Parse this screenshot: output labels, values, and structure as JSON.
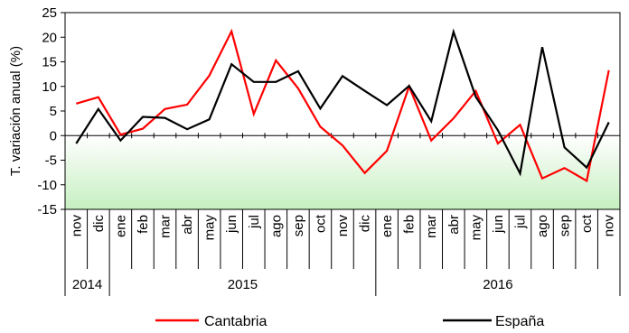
{
  "chart_data": {
    "type": "line",
    "title": "",
    "xlabel": "",
    "ylabel": "T. variación anual (%)",
    "ylim": [
      -15,
      25
    ],
    "yticks": [
      -15,
      -10,
      -5,
      0,
      5,
      10,
      15,
      20,
      25
    ],
    "grid": false,
    "legend_position": "bottom",
    "categories": [
      "nov",
      "dic",
      "ene",
      "feb",
      "mar",
      "abr",
      "may",
      "jun",
      "jul",
      "ago",
      "sep",
      "oct",
      "nov",
      "dic",
      "ene",
      "feb",
      "mar",
      "abr",
      "may",
      "jun",
      "jul",
      "ago",
      "sep",
      "oct",
      "nov"
    ],
    "year_groups": [
      {
        "label": "2014",
        "start": 0,
        "end": 1
      },
      {
        "label": "2015",
        "start": 2,
        "end": 13
      },
      {
        "label": "2016",
        "start": 14,
        "end": 24
      }
    ],
    "series": [
      {
        "name": "Cantabria",
        "color": "#ff0000",
        "values": [
          6.5,
          7.8,
          0.2,
          1.4,
          5.4,
          6.3,
          12.2,
          21.2,
          4.4,
          15.3,
          9.6,
          1.8,
          -2.0,
          -7.6,
          -3.1,
          10.0,
          -1.0,
          3.5,
          9.1,
          -1.6,
          2.2,
          -8.7,
          -6.6,
          -9.2,
          13.3
        ]
      },
      {
        "name": "España",
        "color": "#000000",
        "values": [
          -1.6,
          5.4,
          -1.0,
          3.8,
          3.6,
          1.3,
          3.3,
          14.5,
          10.9,
          10.9,
          13.1,
          5.5,
          12.1,
          9.1,
          6.2,
          10.1,
          2.9,
          21.1,
          7.9,
          1.1,
          -7.7,
          18.0,
          -2.4,
          -6.5,
          2.7
        ]
      }
    ],
    "colors": {
      "zero_band_top": "#ffffff",
      "zero_band_bottom": "#c6efc0",
      "axis": "#000000"
    }
  }
}
